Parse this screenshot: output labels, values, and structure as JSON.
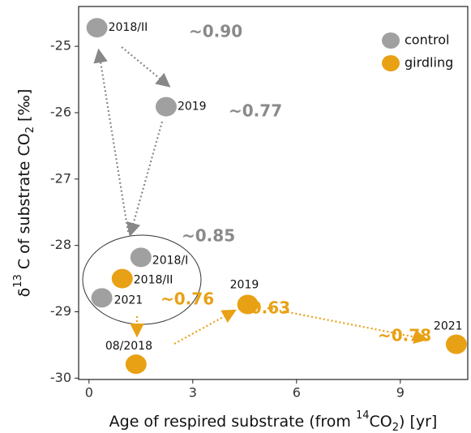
{
  "chart_data": {
    "type": "scatter",
    "xlabel": {
      "parts": [
        "Age of respired substrate (from ",
        "14",
        "CO",
        "2",
        ") [yr]"
      ]
    },
    "ylabel": {
      "parts": [
        "δ",
        "13",
        " C of substrate CO",
        "2",
        " [‰]"
      ]
    },
    "xlim": [
      -0.3,
      10.95
    ],
    "ylim": [
      -30.02,
      -24.4
    ],
    "xticks": [
      0,
      3,
      6,
      9
    ],
    "yticks": [
      -30,
      -29,
      -28,
      -27,
      -26,
      -25
    ],
    "legend": "top-right",
    "series": [
      {
        "name": "control",
        "color": "#a0a0a0",
        "x": [
          0.23,
          2.23,
          1.5,
          0.37
        ],
        "values": [
          -24.72,
          -25.91,
          -28.18,
          -28.79
        ],
        "labels": [
          "2018/II",
          "2019",
          "2018/I",
          "2021"
        ]
      },
      {
        "name": "girdling",
        "color": "#e8a114",
        "x": [
          0.96,
          1.36,
          4.59,
          10.62
        ],
        "values": [
          -28.5,
          -29.79,
          -28.89,
          -29.49
        ],
        "labels": [
          "2018/II",
          "08/2018",
          "2019",
          "2021"
        ]
      }
    ],
    "annotations": [
      {
        "text": "~0.90",
        "color": "#8a8a8a"
      },
      {
        "text": "~0.77",
        "color": "#8a8a8a"
      },
      {
        "text": "~0.85",
        "color": "#8a8a8a"
      },
      {
        "text": "~0.76",
        "color": "#e8a114"
      },
      {
        "text": "~0.63",
        "color": "#e8a114"
      },
      {
        "text": "~0.78",
        "color": "#e8a114"
      }
    ]
  }
}
